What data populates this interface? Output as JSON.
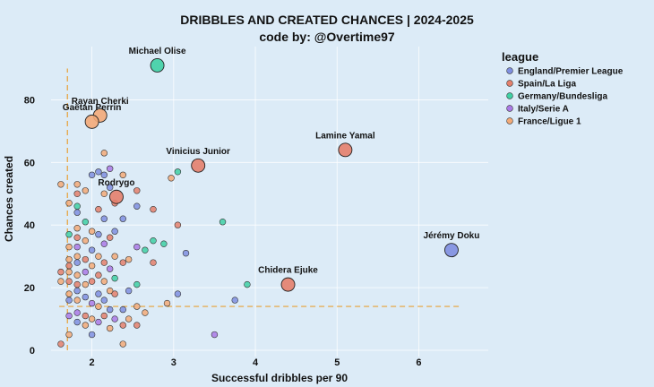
{
  "chart_data": {
    "type": "scatter",
    "title": "DRIBBLES AND CREATED CHANCES | 2024-2025",
    "subtitle": "code by: @Overtime97",
    "xlabel": "Successful dribbles per 90",
    "ylabel": "Chances created",
    "xlim": [
      1.5,
      6.85
    ],
    "ylim": [
      -2,
      97
    ],
    "x_ticks": [
      "2",
      "3",
      "4",
      "5",
      "6"
    ],
    "y_ticks": [
      "0",
      "20",
      "40",
      "60",
      "80"
    ],
    "grid": true,
    "reference_lines": {
      "x": 1.7,
      "y": 14
    },
    "legend": {
      "title": "league",
      "placement": "right",
      "entries": [
        {
          "name": "England/Premier League",
          "color": "#7f8fe0"
        },
        {
          "name": "Spain/La Liga",
          "color": "#e4806c"
        },
        {
          "name": "Germany/Bundesliga",
          "color": "#3fd0a4"
        },
        {
          "name": "Italy/Serie A",
          "color": "#aa7ae6"
        },
        {
          "name": "France/Ligue 1",
          "color": "#f3aa78"
        }
      ]
    },
    "highlighted": [
      {
        "name": "Michael Olise",
        "x": 2.8,
        "y": 91,
        "league": "Germany/Bundesliga"
      },
      {
        "name": "Rayan Cherki",
        "x": 2.1,
        "y": 75,
        "league": "France/Ligue 1"
      },
      {
        "name": "Gaëtan Perrin",
        "x": 2.0,
        "y": 73,
        "league": "France/Ligue 1"
      },
      {
        "name": "Lamine Yamal",
        "x": 5.1,
        "y": 64,
        "league": "Spain/La Liga"
      },
      {
        "name": "Vinicius Junior",
        "x": 3.3,
        "y": 59,
        "league": "Spain/La Liga"
      },
      {
        "name": "Rodrygo",
        "x": 2.3,
        "y": 49,
        "league": "Spain/La Liga"
      },
      {
        "name": "Jérémy Doku",
        "x": 6.4,
        "y": 32,
        "league": "England/Premier League"
      },
      {
        "name": "Chidera Ejuke",
        "x": 4.4,
        "y": 21,
        "league": "Spain/La Liga"
      }
    ],
    "points": [
      {
        "x": 1.62,
        "y": 53,
        "l": 4
      },
      {
        "x": 1.62,
        "y": 25,
        "l": 1
      },
      {
        "x": 1.62,
        "y": 22,
        "l": 4
      },
      {
        "x": 1.62,
        "y": 2,
        "l": 1
      },
      {
        "x": 1.72,
        "y": 47,
        "l": 4
      },
      {
        "x": 1.72,
        "y": 37,
        "l": 2
      },
      {
        "x": 1.72,
        "y": 33,
        "l": 4
      },
      {
        "x": 1.72,
        "y": 29,
        "l": 4
      },
      {
        "x": 1.72,
        "y": 27,
        "l": 1
      },
      {
        "x": 1.72,
        "y": 25,
        "l": 4
      },
      {
        "x": 1.72,
        "y": 22,
        "l": 1
      },
      {
        "x": 1.72,
        "y": 18,
        "l": 4
      },
      {
        "x": 1.72,
        "y": 16,
        "l": 0
      },
      {
        "x": 1.72,
        "y": 11,
        "l": 3
      },
      {
        "x": 1.72,
        "y": 5,
        "l": 4
      },
      {
        "x": 1.82,
        "y": 53,
        "l": 4
      },
      {
        "x": 1.82,
        "y": 50,
        "l": 1
      },
      {
        "x": 1.82,
        "y": 46,
        "l": 2
      },
      {
        "x": 1.82,
        "y": 44,
        "l": 0
      },
      {
        "x": 1.82,
        "y": 39,
        "l": 4
      },
      {
        "x": 1.82,
        "y": 36,
        "l": 1
      },
      {
        "x": 1.82,
        "y": 33,
        "l": 3
      },
      {
        "x": 1.82,
        "y": 30,
        "l": 4
      },
      {
        "x": 1.82,
        "y": 28,
        "l": 0
      },
      {
        "x": 1.82,
        "y": 24,
        "l": 4
      },
      {
        "x": 1.82,
        "y": 21,
        "l": 1
      },
      {
        "x": 1.82,
        "y": 19,
        "l": 0
      },
      {
        "x": 1.82,
        "y": 16,
        "l": 4
      },
      {
        "x": 1.82,
        "y": 12,
        "l": 3
      },
      {
        "x": 1.82,
        "y": 9,
        "l": 0
      },
      {
        "x": 1.92,
        "y": 51,
        "l": 4
      },
      {
        "x": 1.92,
        "y": 41,
        "l": 2
      },
      {
        "x": 1.92,
        "y": 35,
        "l": 4
      },
      {
        "x": 1.92,
        "y": 29,
        "l": 1
      },
      {
        "x": 1.92,
        "y": 25,
        "l": 3
      },
      {
        "x": 1.92,
        "y": 21,
        "l": 4
      },
      {
        "x": 1.92,
        "y": 17,
        "l": 0
      },
      {
        "x": 1.92,
        "y": 11,
        "l": 1
      },
      {
        "x": 1.92,
        "y": 8,
        "l": 4
      },
      {
        "x": 2.0,
        "y": 56,
        "l": 0
      },
      {
        "x": 2.0,
        "y": 38,
        "l": 4
      },
      {
        "x": 2.0,
        "y": 32,
        "l": 0
      },
      {
        "x": 2.0,
        "y": 27,
        "l": 4
      },
      {
        "x": 2.0,
        "y": 22,
        "l": 1
      },
      {
        "x": 2.0,
        "y": 15,
        "l": 3
      },
      {
        "x": 2.0,
        "y": 10,
        "l": 4
      },
      {
        "x": 2.0,
        "y": 5,
        "l": 0
      },
      {
        "x": 2.08,
        "y": 57,
        "l": 0
      },
      {
        "x": 2.08,
        "y": 45,
        "l": 1
      },
      {
        "x": 2.08,
        "y": 37,
        "l": 0
      },
      {
        "x": 2.08,
        "y": 30,
        "l": 4
      },
      {
        "x": 2.08,
        "y": 24,
        "l": 1
      },
      {
        "x": 2.08,
        "y": 18,
        "l": 0
      },
      {
        "x": 2.08,
        "y": 14,
        "l": 4
      },
      {
        "x": 2.08,
        "y": 9,
        "l": 3
      },
      {
        "x": 2.15,
        "y": 63,
        "l": 4
      },
      {
        "x": 2.15,
        "y": 56,
        "l": 0
      },
      {
        "x": 2.15,
        "y": 50,
        "l": 4
      },
      {
        "x": 2.15,
        "y": 42,
        "l": 0
      },
      {
        "x": 2.15,
        "y": 34,
        "l": 3
      },
      {
        "x": 2.15,
        "y": 28,
        "l": 1
      },
      {
        "x": 2.15,
        "y": 22,
        "l": 4
      },
      {
        "x": 2.15,
        "y": 16,
        "l": 0
      },
      {
        "x": 2.15,
        "y": 11,
        "l": 1
      },
      {
        "x": 2.22,
        "y": 58,
        "l": 3
      },
      {
        "x": 2.22,
        "y": 52,
        "l": 0
      },
      {
        "x": 2.22,
        "y": 36,
        "l": 1
      },
      {
        "x": 2.22,
        "y": 26,
        "l": 3
      },
      {
        "x": 2.22,
        "y": 19,
        "l": 4
      },
      {
        "x": 2.22,
        "y": 13,
        "l": 0
      },
      {
        "x": 2.22,
        "y": 7,
        "l": 4
      },
      {
        "x": 2.28,
        "y": 47,
        "l": 1
      },
      {
        "x": 2.28,
        "y": 38,
        "l": 0
      },
      {
        "x": 2.28,
        "y": 30,
        "l": 4
      },
      {
        "x": 2.28,
        "y": 23,
        "l": 2
      },
      {
        "x": 2.28,
        "y": 18,
        "l": 1
      },
      {
        "x": 2.28,
        "y": 10,
        "l": 3
      },
      {
        "x": 2.38,
        "y": 56,
        "l": 4
      },
      {
        "x": 2.38,
        "y": 42,
        "l": 0
      },
      {
        "x": 2.38,
        "y": 28,
        "l": 1
      },
      {
        "x": 2.38,
        "y": 13,
        "l": 0
      },
      {
        "x": 2.38,
        "y": 8,
        "l": 1
      },
      {
        "x": 2.38,
        "y": 2,
        "l": 4
      },
      {
        "x": 2.45,
        "y": 29,
        "l": 4
      },
      {
        "x": 2.45,
        "y": 19,
        "l": 0
      },
      {
        "x": 2.45,
        "y": 10,
        "l": 4
      },
      {
        "x": 2.55,
        "y": 51,
        "l": 1
      },
      {
        "x": 2.55,
        "y": 46,
        "l": 0
      },
      {
        "x": 2.55,
        "y": 33,
        "l": 3
      },
      {
        "x": 2.55,
        "y": 21,
        "l": 2
      },
      {
        "x": 2.55,
        "y": 14,
        "l": 4
      },
      {
        "x": 2.55,
        "y": 8,
        "l": 1
      },
      {
        "x": 2.65,
        "y": 32,
        "l": 2
      },
      {
        "x": 2.65,
        "y": 12,
        "l": 4
      },
      {
        "x": 2.75,
        "y": 45,
        "l": 1
      },
      {
        "x": 2.75,
        "y": 35,
        "l": 2
      },
      {
        "x": 2.75,
        "y": 28,
        "l": 1
      },
      {
        "x": 2.88,
        "y": 34,
        "l": 2
      },
      {
        "x": 2.92,
        "y": 15,
        "l": 4
      },
      {
        "x": 2.97,
        "y": 55,
        "l": 4
      },
      {
        "x": 3.05,
        "y": 57,
        "l": 2
      },
      {
        "x": 3.05,
        "y": 40,
        "l": 1
      },
      {
        "x": 3.05,
        "y": 18,
        "l": 0
      },
      {
        "x": 3.15,
        "y": 31,
        "l": 0
      },
      {
        "x": 3.6,
        "y": 41,
        "l": 2
      },
      {
        "x": 3.75,
        "y": 16,
        "l": 0
      },
      {
        "x": 3.9,
        "y": 21,
        "l": 2
      },
      {
        "x": 3.5,
        "y": 5,
        "l": 3
      }
    ]
  }
}
